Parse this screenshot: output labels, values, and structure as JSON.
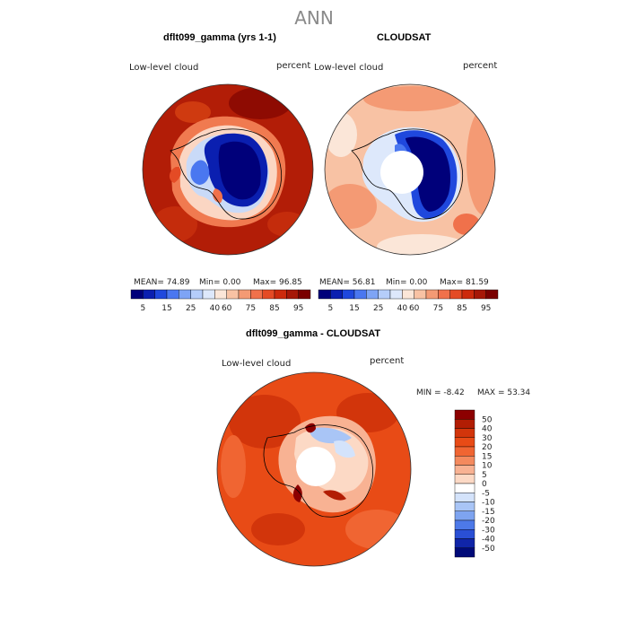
{
  "figure_title": "ANN",
  "panels": [
    {
      "title": "dflt099_gamma (yrs 1-1)",
      "variable": "Low-level cloud",
      "units": "percent",
      "stats": {
        "mean": "MEAN= 74.89",
        "min": "Min= 0.00",
        "max": "Max= 96.85"
      }
    },
    {
      "title": "CLOUDSAT",
      "variable": "Low-level cloud",
      "units": "percent",
      "stats": {
        "mean": "MEAN= 56.81",
        "min": "Min= 0.00",
        "max": "Max= 81.59"
      }
    },
    {
      "title": "dflt099_gamma - CLOUDSAT",
      "variable": "Low-level cloud",
      "units": "percent",
      "stats": {
        "min": "MIN = -8.42",
        "max": "MAX = 53.34"
      }
    }
  ],
  "colorbar_abs": {
    "labels": [
      "5",
      "15",
      "25",
      "40",
      "60",
      "75",
      "85",
      "95"
    ],
    "colors": [
      "#00007a",
      "#0a1fb0",
      "#1f48dd",
      "#4a77f0",
      "#7ea4f5",
      "#b5cdfa",
      "#dde8fb",
      "#fbe6d8",
      "#f8c2a4",
      "#f49a74",
      "#f0714b",
      "#e44b25",
      "#cc2a0c",
      "#a61707",
      "#7a0000"
    ]
  },
  "colorbar_diff": {
    "labels": [
      "50",
      "40",
      "30",
      "20",
      "15",
      "10",
      "5",
      "0",
      "-5",
      "-10",
      "-15",
      "-20",
      "-30",
      "-40",
      "-50"
    ],
    "colors": [
      "#8c0000",
      "#b21d04",
      "#d2350b",
      "#e84b16",
      "#f06532",
      "#f48a5e",
      "#f8b293",
      "#fcd9c5",
      "#ffffff",
      "#d4e3fb",
      "#a9c5f6",
      "#7ea4f0",
      "#4d79e8",
      "#2a4fd5",
      "#1025a8",
      "#000a78"
    ]
  },
  "colors": {
    "title_gray": "#8a8a8a",
    "map_outline": "#333333",
    "coastline": "#000000"
  }
}
